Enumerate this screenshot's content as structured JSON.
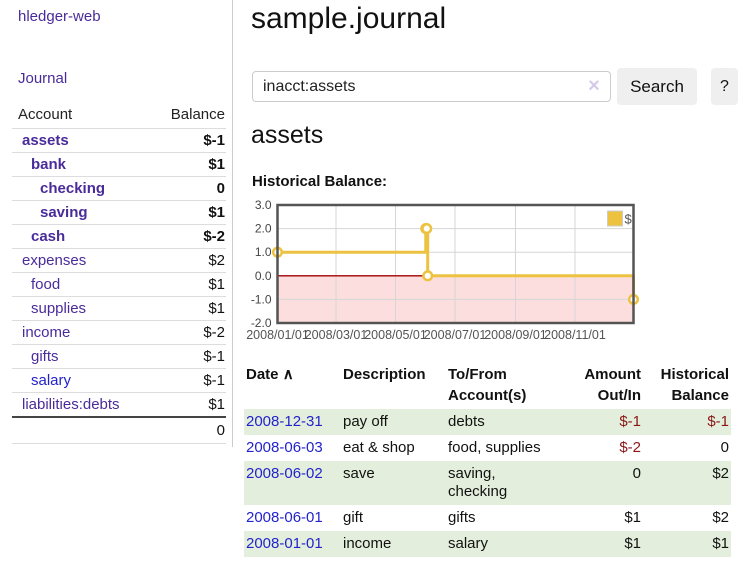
{
  "app": {
    "brand": "hledger-web",
    "nav_journal": "Journal"
  },
  "colors": {
    "link_purple": "#4a2b9a",
    "link_blue": "#2323cc",
    "negative_strong": "#7a0d0d",
    "negative_soft": "#b26a6a",
    "negative_table": "#8c1717",
    "row_green": "#e3efdc",
    "series_yellow": "#EDC240",
    "negative_shade_pink": "#fcdede",
    "zero_line_red": "#a40000",
    "button_gray": "#efefef"
  },
  "sidebar": {
    "headers": {
      "account": "Account",
      "balance": "Balance"
    },
    "rows": [
      {
        "account": "assets",
        "balance": "$-1",
        "depth": 1,
        "bold": true,
        "neg": "strong",
        "blue": false
      },
      {
        "account": "bank",
        "balance": "$1",
        "depth": 2,
        "bold": true,
        "neg": null,
        "blue": false
      },
      {
        "account": "checking",
        "balance": "0",
        "depth": 3,
        "bold": true,
        "neg": null,
        "blue": false
      },
      {
        "account": "saving",
        "balance": "$1",
        "depth": 3,
        "bold": true,
        "neg": null,
        "blue": false
      },
      {
        "account": "cash",
        "balance": "$-2",
        "depth": 2,
        "bold": true,
        "neg": "strong",
        "blue": false
      },
      {
        "account": "expenses",
        "balance": "$2",
        "depth": 1,
        "bold": false,
        "neg": null,
        "blue": false
      },
      {
        "account": "food",
        "balance": "$1",
        "depth": 2,
        "bold": false,
        "neg": null,
        "blue": false
      },
      {
        "account": "supplies",
        "balance": "$1",
        "depth": 2,
        "bold": false,
        "neg": null,
        "blue": false
      },
      {
        "account": "income",
        "balance": "$-2",
        "depth": 1,
        "bold": false,
        "neg": "soft",
        "blue": false
      },
      {
        "account": "gifts",
        "balance": "$-1",
        "depth": 2,
        "bold": false,
        "neg": "soft",
        "blue": false
      },
      {
        "account": "salary",
        "balance": "$-1",
        "depth": 2,
        "bold": false,
        "neg": "soft",
        "blue": true
      },
      {
        "account": "liabilities:debts",
        "balance": "$1",
        "depth": 1,
        "bold": false,
        "neg": null,
        "blue": false
      }
    ],
    "total": "0"
  },
  "main": {
    "title": "sample.journal",
    "search": {
      "value": "inacct:assets",
      "clear_icon": "×",
      "button_label": "Search",
      "help_label": "?"
    },
    "account_heading": "assets"
  },
  "chart_data": {
    "type": "line",
    "step": true,
    "title": "Historical Balance:",
    "legend": {
      "label": "$",
      "position": "top-right"
    },
    "series": [
      {
        "name": "$",
        "color": "#EDC240",
        "points": [
          [
            "2008-01-01",
            1.0
          ],
          [
            "2008-06-01",
            2.0
          ],
          [
            "2008-06-02",
            2.0
          ],
          [
            "2008-06-03",
            0.0
          ],
          [
            "2008-12-31",
            -1.0
          ]
        ]
      }
    ],
    "xlim": [
      "2008-01-01",
      "2008-12-31"
    ],
    "ylim": [
      -2.0,
      3.0
    ],
    "y_ticks": [
      "3.0",
      "2.0",
      "1.0",
      "0.0",
      "-1.0",
      "-2.0"
    ],
    "x_ticks": [
      {
        "date": "2008-01-01",
        "label": "2008/01/01"
      },
      {
        "date": "2008-03-01",
        "label": "2008/03/01"
      },
      {
        "date": "2008-05-01",
        "label": "2008/05/01"
      },
      {
        "date": "2008-07-01",
        "label": "2008/07/01"
      },
      {
        "date": "2008-09-01",
        "label": "2008/09/01"
      },
      {
        "date": "2008-11-01",
        "label": "2008/11/01"
      }
    ],
    "grid": true,
    "negative_region_shade": "#fcdede",
    "zero_line_color": "#a40000",
    "grid_color": "#d6d6d6",
    "border_color": "#545454"
  },
  "register": {
    "headers": {
      "date": "Date",
      "sort_icon": "∧",
      "description": "Description",
      "tofrom1": "To/From",
      "tofrom2": "Account(s)",
      "amount1": "Amount",
      "amount2": "Out/In",
      "hist1": "Historical",
      "hist2": "Balance"
    },
    "rows": [
      {
        "date": "2008-12-31",
        "description": "pay off",
        "accounts": "debts",
        "amount": "$-1",
        "balance": "$-1",
        "green": true,
        "negative_amount": true,
        "negative_balance": true
      },
      {
        "date": "2008-06-03",
        "description": "eat & shop",
        "accounts": "food, supplies",
        "amount": "$-2",
        "balance": "0",
        "green": false,
        "negative_amount": true,
        "negative_balance": false
      },
      {
        "date": "2008-06-02",
        "description": "save",
        "accounts": "saving, checking",
        "amount": "0",
        "balance": "$2",
        "green": true,
        "negative_amount": false,
        "negative_balance": false
      },
      {
        "date": "2008-06-01",
        "description": "gift",
        "accounts": "gifts",
        "amount": "$1",
        "balance": "$2",
        "green": false,
        "negative_amount": false,
        "negative_balance": false
      },
      {
        "date": "2008-01-01",
        "description": "income",
        "accounts": "salary",
        "amount": "$1",
        "balance": "$1",
        "green": true,
        "negative_amount": false,
        "negative_balance": false
      }
    ]
  }
}
